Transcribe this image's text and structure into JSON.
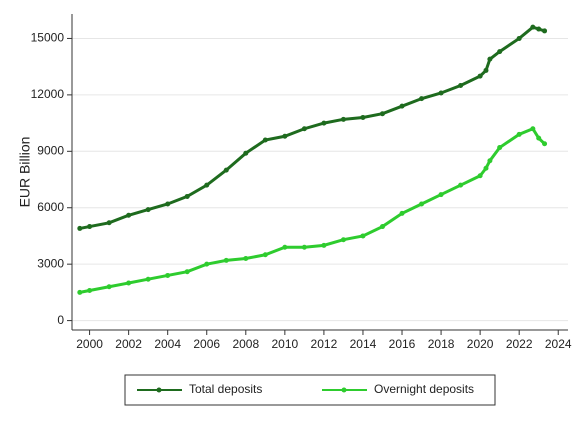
{
  "chart_data": {
    "type": "line",
    "y_label": "EUR Billion",
    "x": [
      1999.5,
      2000,
      2001,
      2002,
      2003,
      2004,
      2005,
      2006,
      2007,
      2008,
      2009,
      2010,
      2011,
      2012,
      2013,
      2014,
      2015,
      2016,
      2017,
      2018,
      2019,
      2020,
      2020.3,
      2020.5,
      2021,
      2022,
      2022.7,
      2023,
      2023.3
    ],
    "series": [
      {
        "name": "Total deposits",
        "color": "#1e6b1e",
        "values": [
          4900,
          5000,
          5200,
          5600,
          5900,
          6200,
          6600,
          7200,
          8000,
          8900,
          9600,
          9800,
          10200,
          10500,
          10700,
          10800,
          11000,
          11400,
          11800,
          12100,
          12500,
          13000,
          13300,
          13900,
          14300,
          15000,
          15600,
          15500,
          15400
        ]
      },
      {
        "name": "Overnight deposits",
        "color": "#2ecc2e",
        "values": [
          1500,
          1600,
          1800,
          2000,
          2200,
          2400,
          2600,
          3000,
          3200,
          3300,
          3500,
          3900,
          3900,
          4000,
          4300,
          4500,
          5000,
          5700,
          6200,
          6700,
          7200,
          7700,
          8100,
          8500,
          9200,
          9900,
          10200,
          9700,
          9400
        ]
      }
    ],
    "xlim": [
      1999.1,
      2024.5
    ],
    "ylim": [
      -500,
      16300
    ],
    "xticks": [
      2000,
      2002,
      2004,
      2006,
      2008,
      2010,
      2012,
      2014,
      2016,
      2018,
      2020,
      2022,
      2024
    ],
    "yticks": [
      0,
      3000,
      6000,
      9000,
      12000,
      15000
    ],
    "grid": true,
    "legend": "bottom"
  }
}
